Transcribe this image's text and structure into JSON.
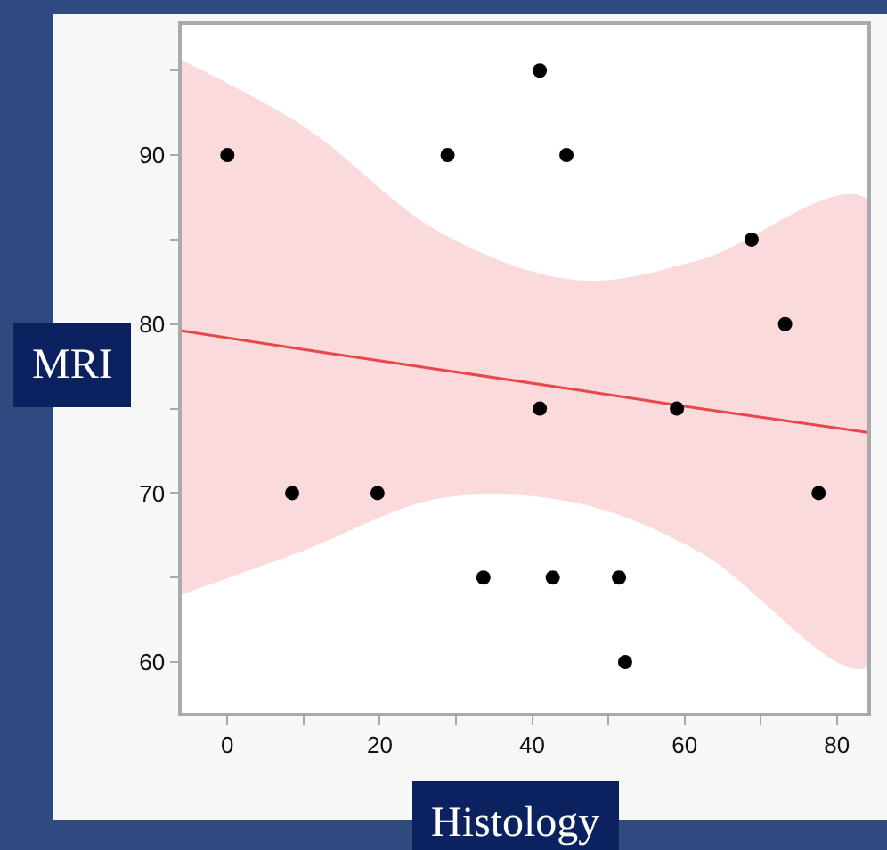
{
  "chart_data": {
    "type": "scatter",
    "xlabel": "Histology",
    "ylabel": "MRI",
    "xlim": [
      -6,
      84
    ],
    "xticks": [
      0,
      {
        "value": 10,
        "label": null
      },
      20,
      {
        "value": 30,
        "label": null
      },
      40,
      {
        "value": 50,
        "label": null
      },
      60,
      {
        "value": 70,
        "label": null
      },
      80
    ],
    "ylim": [
      57,
      97.7
    ],
    "yticks": [
      60,
      {
        "value": 65,
        "label": null
      },
      70,
      {
        "value": 75,
        "label": null
      },
      80,
      {
        "value": 85,
        "label": null
      },
      90,
      {
        "value": 95,
        "label": null
      }
    ],
    "grid": false,
    "marker": "circle",
    "series": [
      {
        "color": "#000000",
        "x": [
          0,
          8.5,
          19.7,
          28.9,
          41,
          44.5,
          33.6,
          42.7,
          51.4,
          52.2,
          41,
          59,
          68.8,
          73.2,
          77.6
        ],
        "values": [
          90,
          70,
          70,
          90,
          95,
          90,
          65,
          65,
          65,
          60,
          75,
          75,
          85,
          80,
          70
        ]
      },
      {
        "type": "line",
        "marker": "none",
        "color": "#e8474b",
        "x": [
          -6,
          10,
          28,
          46,
          62,
          84
        ],
        "values": [
          79.6,
          78.5,
          77.3,
          76.1,
          75.0,
          73.6
        ],
        "lower": [
          64.0,
          66.6,
          69.7,
          69.4,
          66.5,
          59.7
        ],
        "upper": [
          95.6,
          91.7,
          85.4,
          82.6,
          83.8,
          87.4
        ]
      }
    ]
  }
}
